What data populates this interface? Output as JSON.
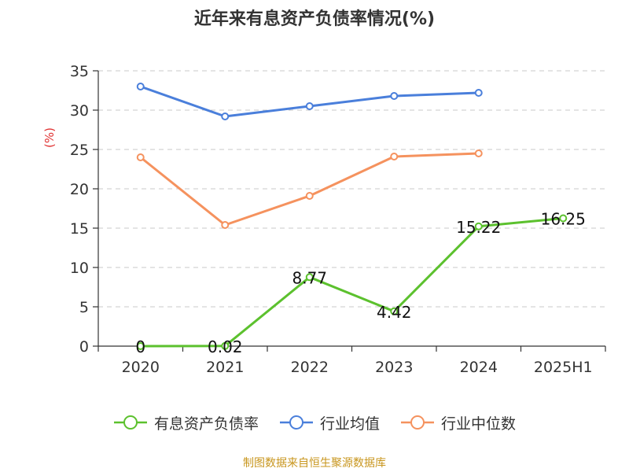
{
  "chart_data": {
    "type": "line",
    "title": "近年来有息资产负债率情况(%)",
    "ylabel": "(%)",
    "categories": [
      "2020",
      "2021",
      "2022",
      "2023",
      "2024",
      "2025H1"
    ],
    "ylim": [
      0,
      35
    ],
    "yticks": [
      0,
      5,
      10,
      15,
      20,
      25,
      30,
      35
    ],
    "grid": true,
    "legend_position": "bottom",
    "series": [
      {
        "name": "有息资产负债率",
        "color": "#5cc12e",
        "values": [
          0,
          0.02,
          8.77,
          4.42,
          15.22,
          16.25
        ],
        "labels": [
          "0",
          "0.02",
          "8.77",
          "4.42",
          "15.22",
          "16.25"
        ]
      },
      {
        "name": "行业均值",
        "color": "#4a7fdb",
        "values": [
          33.0,
          29.2,
          30.5,
          31.8,
          32.2,
          null
        ]
      },
      {
        "name": "行业中位数",
        "color": "#f5925e",
        "values": [
          24.0,
          15.4,
          19.1,
          24.1,
          24.5,
          null
        ]
      }
    ]
  },
  "footer": {
    "source": "制图数据来自恒生聚源数据库"
  }
}
